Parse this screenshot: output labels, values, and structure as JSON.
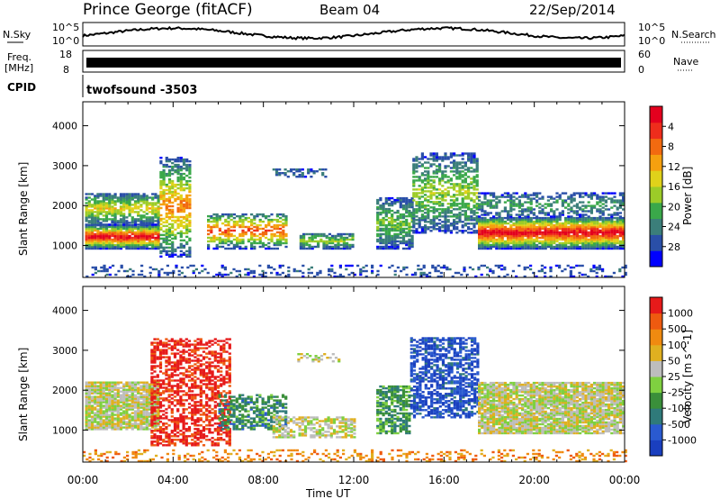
{
  "header": {
    "station": "Prince George (fitACF)",
    "beam": "Beam 04",
    "date": "22/Sep/2014"
  },
  "top_panels": {
    "nsky_label": "N.Sky",
    "nsky_ticks": [
      "10^5",
      "10^0"
    ],
    "nsearch_label": "N.Search",
    "nsearch_ticks": [
      "10^5",
      "10^0"
    ],
    "freq_label_1": "Freq.",
    "freq_label_2": "[MHz]",
    "freq_ticks": [
      "18",
      "8"
    ],
    "nave_label": "Nave",
    "nave_ticks": [
      "60",
      "0"
    ],
    "cpid_label": "CPID",
    "cpid_value": "twofsound -3503"
  },
  "chart_data": [
    {
      "type": "heatmap",
      "name": "power",
      "ylabel": "Slant Range [km]",
      "xlabel": "",
      "y_ticks": [
        "1000",
        "2000",
        "3000",
        "4000"
      ],
      "ylim": [
        200,
        4600
      ],
      "x_ticks": [
        "00:00",
        "04:00",
        "08:00",
        "12:00",
        "16:00",
        "20:00",
        "00:00"
      ],
      "xlim_hours": [
        0,
        24
      ],
      "colorbar": {
        "label": "Power [dB]",
        "ticks": [
          "4",
          "8",
          "12",
          "16",
          "20",
          "24",
          "28"
        ],
        "colors": [
          "#0000ff",
          "#2a4fa8",
          "#3b7e7a",
          "#3aa84a",
          "#9ccc28",
          "#e0d21a",
          "#f5a00f",
          "#f26a10",
          "#ee2d1c",
          "#e3001e"
        ]
      }
    },
    {
      "type": "heatmap",
      "name": "velocity",
      "ylabel": "Slant Range [km]",
      "xlabel": "Time UT",
      "y_ticks": [
        "1000",
        "2000",
        "3000",
        "4000"
      ],
      "ylim": [
        200,
        4600
      ],
      "x_ticks": [
        "00:00",
        "04:00",
        "08:00",
        "12:00",
        "16:00",
        "20:00",
        "00:00"
      ],
      "xlim_hours": [
        0,
        24
      ],
      "colorbar": {
        "label": "Velocity [m s^-1]",
        "ticks": [
          "1000",
          "500",
          "100",
          "50",
          "25",
          "-25",
          "-100",
          "-500",
          "-1000"
        ],
        "colors": [
          "#1a3fbf",
          "#2a5ad0",
          "#2f7a7a",
          "#3a8f3a",
          "#7fd040",
          "#bdbdbd",
          "#e0b020",
          "#f08a10",
          "#ee5a10",
          "#e61a1a"
        ]
      }
    }
  ]
}
